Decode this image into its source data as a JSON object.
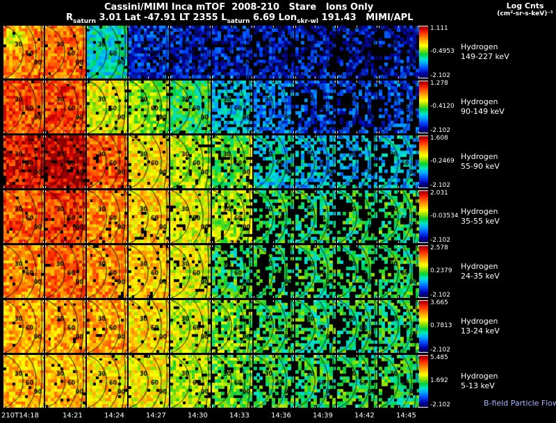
{
  "header": {
    "title": "Cassini/MIMI Inca mTOF  2008-210   Stare   Ions Only",
    "log_units_line1": "Log Cnts",
    "log_units_line2": "(cm²-sr-s-keV)⁻¹",
    "status_segments": [
      {
        "t": "R"
      },
      {
        "t": "saturn",
        "sub": true
      },
      {
        "t": " 3.01 Lat -47.91 LT 2355 L"
      },
      {
        "t": "saturn",
        "sub": true
      },
      {
        "t": " 6.69 Lon"
      },
      {
        "t": "skr-wl",
        "sub": true
      },
      {
        "t": " 191.43   MIMI/APL"
      }
    ]
  },
  "rows": [
    {
      "species": "Hydrogen",
      "energy": "149-227 keV",
      "cbar": [
        "1.111",
        "-0.4953",
        "-2.102"
      ]
    },
    {
      "species": "Hydrogen",
      "energy": "90-149 keV",
      "cbar": [
        "1.278",
        "-0.4120",
        "-2.102"
      ]
    },
    {
      "species": "Hydrogen",
      "energy": "55-90 keV",
      "cbar": [
        "1.608",
        "-0.2469",
        "-2.102"
      ]
    },
    {
      "species": "Hydrogen",
      "energy": "35-55 keV",
      "cbar": [
        "2.031",
        "-0.03534",
        "-2.102"
      ]
    },
    {
      "species": "Hydrogen",
      "energy": "24-35 keV",
      "cbar": [
        "2.578",
        "0.2379",
        "-2.102"
      ]
    },
    {
      "species": "Hydrogen",
      "energy": "13-24 keV",
      "cbar": [
        "3.665",
        "0.7813",
        "-2.102"
      ]
    },
    {
      "species": "Hydrogen",
      "energy": "5-13 keV",
      "cbar": [
        "5.485",
        "1.692",
        "-2.102"
      ]
    }
  ],
  "footer": {
    "bfield_label": "B-field Particle Flow"
  },
  "chart_data": {
    "type": "heatmap",
    "title": "Cassini/MIMI Inca mTOF 2008-210 Stare Ions Only",
    "colorbar_label": "Log Cnts (cm²-sr-s-keV)⁻¹",
    "grid": {
      "rows": 7,
      "cols": 10
    },
    "x_ticks": [
      "210T14:18",
      "14:21",
      "14:24",
      "14:27",
      "14:30",
      "14:33",
      "14:36",
      "14:39",
      "14:42",
      "14:45"
    ],
    "row_scales": [
      {
        "species": "Hydrogen",
        "energy_range_keV": [
          149,
          227
        ],
        "log_cnts_max": 1.111,
        "log_cnts_mid": -0.4953,
        "log_cnts_min": -2.102
      },
      {
        "species": "Hydrogen",
        "energy_range_keV": [
          90,
          149
        ],
        "log_cnts_max": 1.278,
        "log_cnts_mid": -0.412,
        "log_cnts_min": -2.102
      },
      {
        "species": "Hydrogen",
        "energy_range_keV": [
          55,
          90
        ],
        "log_cnts_max": 1.608,
        "log_cnts_mid": -0.2469,
        "log_cnts_min": -2.102
      },
      {
        "species": "Hydrogen",
        "energy_range_keV": [
          35,
          55
        ],
        "log_cnts_max": 2.031,
        "log_cnts_mid": -0.03534,
        "log_cnts_min": -2.102
      },
      {
        "species": "Hydrogen",
        "energy_range_keV": [
          24,
          35
        ],
        "log_cnts_max": 2.578,
        "log_cnts_mid": 0.2379,
        "log_cnts_min": -2.102
      },
      {
        "species": "Hydrogen",
        "energy_range_keV": [
          13,
          24
        ],
        "log_cnts_max": 3.665,
        "log_cnts_mid": 0.7813,
        "log_cnts_min": -2.102
      },
      {
        "species": "Hydrogen",
        "energy_range_keV": [
          5,
          13
        ],
        "log_cnts_max": 5.485,
        "log_cnts_mid": 1.692,
        "log_cnts_min": -2.102
      }
    ],
    "panel_mean_norm": [
      [
        0.78,
        0.8,
        0.38,
        0.17,
        0.14,
        0.15,
        0.14,
        0.14,
        0.13,
        0.14
      ],
      [
        0.84,
        0.85,
        0.62,
        0.55,
        0.46,
        0.33,
        0.25,
        0.21,
        0.18,
        0.19
      ],
      [
        0.91,
        0.96,
        0.82,
        0.65,
        0.58,
        0.5,
        0.36,
        0.33,
        0.32,
        0.33
      ],
      [
        0.82,
        0.86,
        0.76,
        0.68,
        0.62,
        0.57,
        0.46,
        0.44,
        0.45,
        0.46
      ],
      [
        0.76,
        0.81,
        0.76,
        0.7,
        0.62,
        0.46,
        0.45,
        0.46,
        0.45,
        0.46
      ],
      [
        0.73,
        0.74,
        0.73,
        0.67,
        0.6,
        0.52,
        0.47,
        0.46,
        0.44,
        0.46
      ],
      [
        0.71,
        0.71,
        0.67,
        0.64,
        0.58,
        0.52,
        0.47,
        0.46,
        0.46,
        0.46
      ]
    ],
    "panel_fill_fraction": [
      [
        0.97,
        0.97,
        0.92,
        0.75,
        0.65,
        0.7,
        0.45,
        0.4,
        0.3,
        0.4
      ],
      [
        0.98,
        0.98,
        0.95,
        0.9,
        0.85,
        0.7,
        0.55,
        0.4,
        0.3,
        0.35
      ],
      [
        0.95,
        0.9,
        0.95,
        0.92,
        0.9,
        0.75,
        0.5,
        0.45,
        0.3,
        0.4
      ],
      [
        0.97,
        0.95,
        0.95,
        0.92,
        0.9,
        0.8,
        0.4,
        0.35,
        0.3,
        0.4
      ],
      [
        0.97,
        0.97,
        0.95,
        0.92,
        0.9,
        0.7,
        0.3,
        0.4,
        0.3,
        0.4
      ],
      [
        0.98,
        0.97,
        0.96,
        0.94,
        0.9,
        0.75,
        0.5,
        0.5,
        0.4,
        0.5
      ],
      [
        0.98,
        0.97,
        0.95,
        0.94,
        0.9,
        0.8,
        0.55,
        0.55,
        0.5,
        0.55
      ]
    ],
    "spots": {
      "0,0": [
        0.3,
        0.25,
        0.38,
        -0.16
      ]
    },
    "bright_right_edge": [
      [
        2,
        5
      ],
      [
        3,
        5
      ]
    ],
    "contour_labels": [
      "30",
      "60",
      "90"
    ],
    "colormap_stops": [
      [
        0.0,
        "#0a0a3c"
      ],
      [
        0.1,
        "#0000a0"
      ],
      [
        0.2,
        "#0046ff"
      ],
      [
        0.3,
        "#00aaff"
      ],
      [
        0.38,
        "#00e6c8"
      ],
      [
        0.46,
        "#00d23c"
      ],
      [
        0.55,
        "#96e100"
      ],
      [
        0.63,
        "#ffff00"
      ],
      [
        0.72,
        "#ffb400"
      ],
      [
        0.8,
        "#ff6e00"
      ],
      [
        0.88,
        "#ff2800"
      ],
      [
        0.95,
        "#c80000"
      ],
      [
        1.0,
        "#8c0000"
      ]
    ]
  }
}
